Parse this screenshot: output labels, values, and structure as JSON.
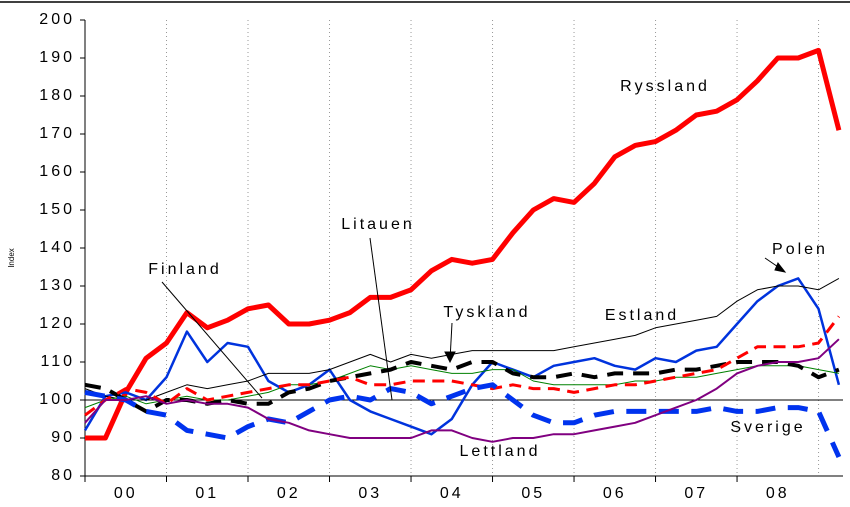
{
  "chart_data": {
    "type": "line",
    "y_axis_label": "Index",
    "categories": [
      "00",
      "01",
      "02",
      "03",
      "04",
      "05",
      "06",
      "07",
      "08"
    ],
    "x": [
      0,
      0.25,
      0.5,
      0.75,
      1,
      1.25,
      1.5,
      1.75,
      2,
      2.25,
      2.5,
      2.75,
      3,
      3.25,
      3.5,
      3.75,
      4,
      4.25,
      4.5,
      4.75,
      5,
      5.25,
      5.5,
      5.75,
      6,
      6.25,
      6.5,
      6.75,
      7,
      7.25,
      7.5,
      7.75,
      8,
      8.25,
      8.5,
      8.75,
      9,
      9.25
    ],
    "xlim": [
      0,
      9.3
    ],
    "ylim": [
      80,
      200
    ],
    "yticks": [
      80,
      90,
      100,
      110,
      120,
      130,
      140,
      150,
      160,
      170,
      180,
      190,
      200
    ],
    "reference_line": 100,
    "grid": true,
    "series": [
      {
        "name": "Ryssland",
        "color": "#ff0000",
        "line_width": 5,
        "dashed": false,
        "values": [
          90,
          90,
          102,
          111,
          115,
          123,
          119,
          121,
          124,
          125,
          120,
          120,
          121,
          123,
          127,
          127,
          129,
          134,
          137,
          136,
          137,
          144,
          150,
          153,
          152,
          157,
          164,
          167,
          168,
          171,
          175,
          176,
          179,
          184,
          190,
          190,
          192,
          171
        ]
      },
      {
        "name": "Polen",
        "color": "#0033dd",
        "line_width": 2.5,
        "dashed": false,
        "values": [
          92,
          101,
          102,
          100,
          106,
          118,
          110,
          115,
          114,
          105,
          102,
          104,
          108,
          100,
          97,
          95,
          93,
          91,
          95,
          104,
          110,
          108,
          106,
          109,
          110,
          111,
          109,
          108,
          111,
          110,
          113,
          114,
          120,
          126,
          130,
          132,
          124,
          104
        ]
      },
      {
        "name": "Estland",
        "color": "#000000",
        "line_width": 1,
        "dashed": false,
        "values": [
          103,
          101,
          100,
          100,
          102,
          104,
          103,
          104,
          105,
          107,
          107,
          107,
          108,
          110,
          112,
          110,
          112,
          111,
          112,
          113,
          113,
          113,
          113,
          113,
          114,
          115,
          116,
          117,
          119,
          120,
          121,
          122,
          126,
          129,
          130,
          130,
          129,
          132
        ]
      },
      {
        "name": "Tyskland",
        "color": "#008000",
        "line_width": 1,
        "dashed": false,
        "values": [
          98,
          100,
          101,
          99,
          100,
          101,
          100,
          100,
          101,
          102,
          104,
          104,
          105,
          107,
          109,
          108,
          109,
          108,
          107,
          107,
          108,
          108,
          105,
          104,
          104,
          104,
          104,
          105,
          105,
          106,
          106,
          107,
          108,
          109,
          109,
          109,
          108,
          107
        ]
      },
      {
        "name": "Finland",
        "color": "#000000",
        "line_width": 4,
        "dashed": true,
        "values": [
          104,
          103,
          100,
          97,
          100,
          100,
          99,
          100,
          99,
          99,
          102,
          103,
          105,
          106,
          107,
          108,
          110,
          109,
          108,
          110,
          110,
          107,
          106,
          106,
          107,
          106,
          107,
          107,
          107,
          108,
          108,
          109,
          110,
          110,
          110,
          109,
          106,
          108
        ]
      },
      {
        "name": "Litauen",
        "color": "#ff0000",
        "line_width": 3,
        "dashed": true,
        "values": [
          96,
          100,
          103,
          102,
          99,
          103,
          100,
          101,
          102,
          103,
          104,
          104,
          105,
          106,
          104,
          104,
          105,
          105,
          105,
          104,
          103,
          104,
          103,
          103,
          102,
          103,
          104,
          104,
          105,
          106,
          107,
          108,
          111,
          114,
          114,
          114,
          115,
          122
        ]
      },
      {
        "name": "Sverige",
        "color": "#0033ee",
        "line_width": 5,
        "dashed": true,
        "values": [
          102,
          101,
          100,
          97,
          96,
          92,
          91,
          90,
          93,
          95,
          94,
          97,
          100,
          101,
          100,
          103,
          102,
          99,
          101,
          103,
          104,
          100,
          96,
          94,
          94,
          96,
          97,
          97,
          97,
          97,
          97,
          98,
          97,
          97,
          98,
          98,
          97,
          85
        ]
      },
      {
        "name": "Lettland",
        "color": "#800080",
        "line_width": 2,
        "dashed": false,
        "values": [
          94,
          100,
          100,
          101,
          99,
          100,
          99,
          99,
          98,
          95,
          94,
          92,
          91,
          90,
          90,
          90,
          90,
          92,
          92,
          90,
          89,
          90,
          90,
          91,
          91,
          92,
          93,
          94,
          96,
          98,
          100,
          103,
          107,
          109,
          110,
          110,
          111,
          116
        ]
      }
    ]
  }
}
